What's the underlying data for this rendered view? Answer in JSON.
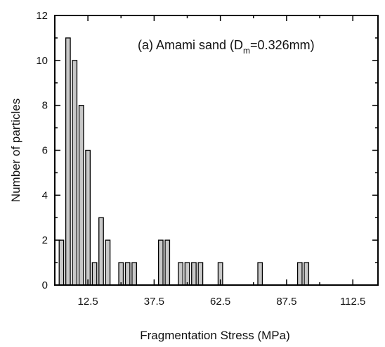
{
  "chart_data": {
    "type": "bar",
    "title": "",
    "xlabel": "Fragmentation Stress  (MPa)",
    "ylabel": "Number of particles",
    "annotation": {
      "prefix": "(a) Amami sand (D",
      "subscript": "m",
      "suffix": "=0.326mm)"
    },
    "bin_width": 2.5,
    "xlim": [
      0,
      122
    ],
    "ylim": [
      0,
      12
    ],
    "x_ticks": [
      12.5,
      37.5,
      62.5,
      87.5,
      112.5
    ],
    "x_tick_labels": [
      "12.5",
      "37.5",
      "62.5",
      "87.5",
      "112.5"
    ],
    "y_ticks": [
      0,
      2,
      4,
      6,
      8,
      10,
      12
    ],
    "y_tick_labels": [
      "0",
      "2",
      "4",
      "6",
      "8",
      "10",
      "12"
    ],
    "grid": false,
    "bar_fill": "#c8c8c8",
    "x": [
      2.5,
      5,
      7.5,
      10,
      12.5,
      15,
      17.5,
      20,
      25,
      27.5,
      30,
      40,
      42.5,
      47.5,
      50,
      52.5,
      55,
      62.5,
      77.5,
      92.5,
      95
    ],
    "values": [
      2,
      11,
      10,
      8,
      6,
      1,
      3,
      2,
      1,
      1,
      1,
      2,
      2,
      1,
      1,
      1,
      1,
      1,
      1,
      1,
      1
    ]
  }
}
